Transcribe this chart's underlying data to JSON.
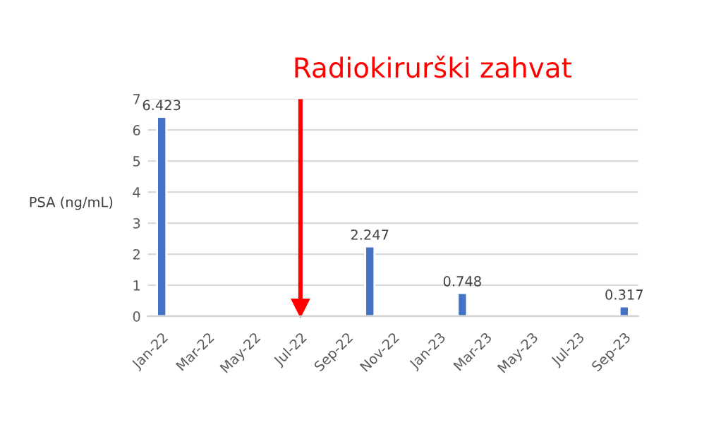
{
  "chart_data": {
    "type": "bar",
    "ylabel": "PSA (ng/mL)",
    "categories": [
      "Jan-22",
      null,
      "Mar-22",
      null,
      "May-22",
      null,
      "Jul-22",
      null,
      "Sep-22",
      null,
      "Nov-22",
      null,
      "Jan-23",
      null,
      "Mar-23",
      null,
      "May-23",
      null,
      "Jul-23",
      null,
      "Sep-23"
    ],
    "values": [
      6.423,
      null,
      null,
      null,
      null,
      null,
      null,
      null,
      null,
      2.247,
      null,
      null,
      null,
      0.748,
      null,
      null,
      null,
      null,
      null,
      null,
      0.317
    ],
    "color": "#4472c4",
    "ylim": [
      0,
      7
    ],
    "yticks": [
      0,
      1,
      2,
      3,
      4,
      5,
      6,
      7
    ],
    "grid": "y",
    "data_labels": true,
    "ref_lines": [
      {
        "axis": "x",
        "value": "Jul-22",
        "label": "Radiokirurški zahvat",
        "color": "#ff0000"
      }
    ]
  }
}
